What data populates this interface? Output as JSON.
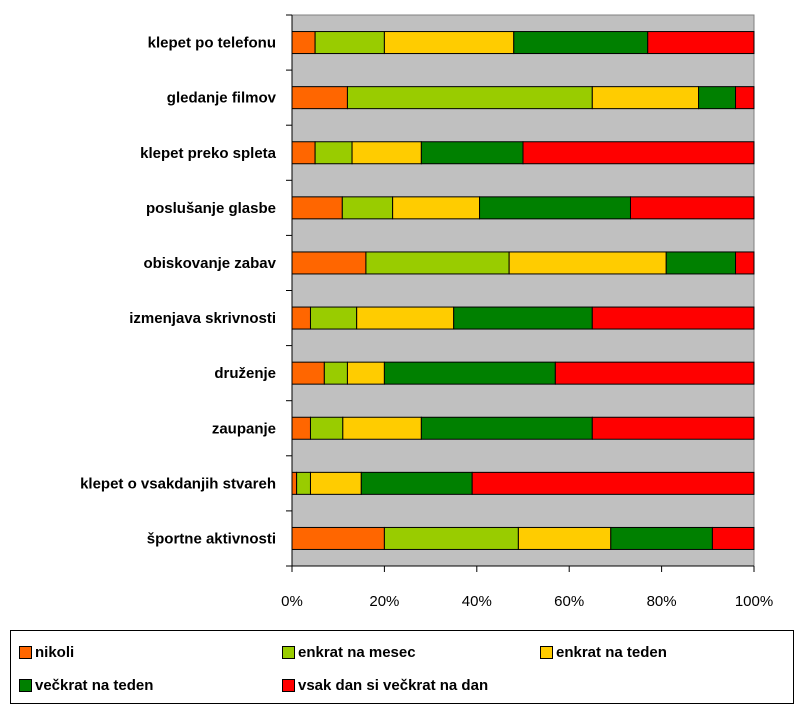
{
  "chart_data": {
    "type": "bar",
    "orientation": "horizontal",
    "stacked": "percent",
    "categories": [
      "klepet po telefonu",
      "gledanje filmov",
      "klepet preko spleta",
      "poslušanje glasbe",
      "obiskovanje zabav",
      "izmenjava skrivnosti",
      "druženje",
      "zaupanje",
      "klepet o vsakdanjih stvareh",
      "športne aktivnosti"
    ],
    "series": [
      {
        "name": "nikoli",
        "color": "#ff6600",
        "values": [
          5,
          12,
          5,
          11,
          16,
          4,
          7,
          4,
          1,
          20
        ]
      },
      {
        "name": "enkrat na mesec",
        "color": "#99cc00",
        "values": [
          15,
          53,
          8,
          11,
          31,
          10,
          5,
          7,
          3,
          29
        ]
      },
      {
        "name": "enkrat na teden",
        "color": "#ffcc00",
        "values": [
          28,
          23,
          15,
          19,
          34,
          21,
          8,
          17,
          11,
          20
        ]
      },
      {
        "name": "večkrat na teden",
        "color": "#008000",
        "values": [
          29,
          8,
          22,
          33,
          15,
          30,
          37,
          37,
          24,
          22
        ]
      },
      {
        "name": "vsak dan si večkrat na dan",
        "color": "#ff0000",
        "values": [
          23,
          4,
          50,
          27,
          4,
          35,
          43,
          35,
          61,
          9
        ]
      }
    ],
    "x_ticks": [
      "0%",
      "20%",
      "40%",
      "60%",
      "80%",
      "100%"
    ],
    "xlim": [
      0,
      100
    ],
    "plot_background": "#c0c0c0",
    "grid": false,
    "legend_position": "bottom",
    "title": "",
    "xlabel": "",
    "ylabel": ""
  }
}
